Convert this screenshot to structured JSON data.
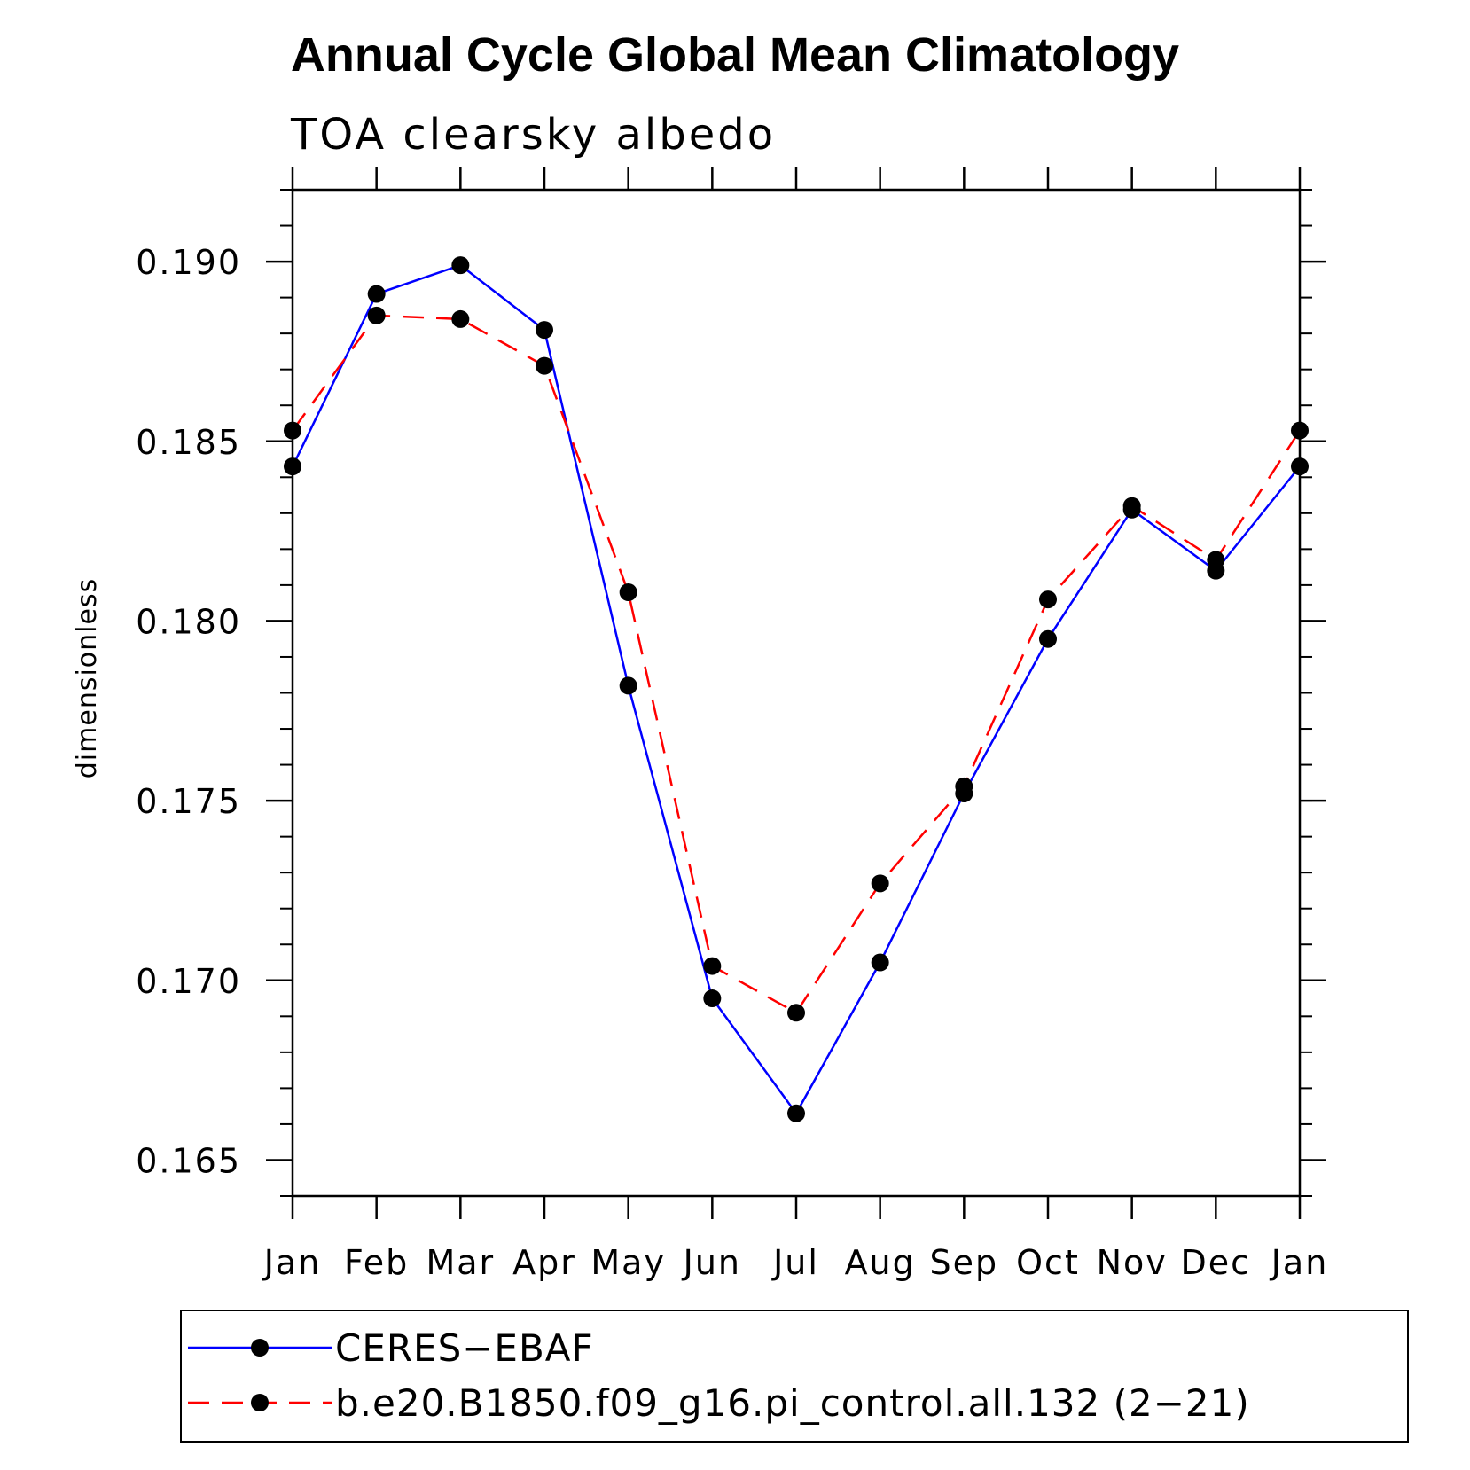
{
  "chart_data": {
    "type": "line",
    "title": "Annual Cycle Global Mean Climatology",
    "subtitle": "TOA clearsky albedo",
    "xlabel": "",
    "ylabel": "dimensionless",
    "categories": [
      "Jan",
      "Feb",
      "Mar",
      "Apr",
      "May",
      "Jun",
      "Jul",
      "Aug",
      "Sep",
      "Oct",
      "Nov",
      "Dec",
      "Jan"
    ],
    "ylim": [
      0.164,
      0.192
    ],
    "yticks": [
      0.165,
      0.17,
      0.175,
      0.18,
      0.185,
      0.19
    ],
    "ytick_labels": [
      "0.165",
      "0.170",
      "0.175",
      "0.180",
      "0.185",
      "0.190"
    ],
    "minor_step": 0.001,
    "legend_position": "bottom",
    "series": [
      {
        "name": "CERES−EBAF",
        "color": "#0000ff",
        "dash": "solid",
        "values": [
          0.1843,
          0.1891,
          0.1899,
          0.1881,
          0.1782,
          0.1695,
          0.1663,
          0.1705,
          0.1752,
          0.1795,
          0.1831,
          0.1814,
          0.1843
        ]
      },
      {
        "name": "b.e20.B1850.f09_g16.pi_control.all.132 (2−21)",
        "color": "#ff0000",
        "dash": "dashed",
        "values": [
          0.1853,
          0.1885,
          0.1884,
          0.1871,
          0.1808,
          0.1704,
          0.1691,
          0.1727,
          0.1754,
          0.1806,
          0.1832,
          0.1817,
          0.1853
        ]
      }
    ],
    "marker_color": "#000000"
  }
}
